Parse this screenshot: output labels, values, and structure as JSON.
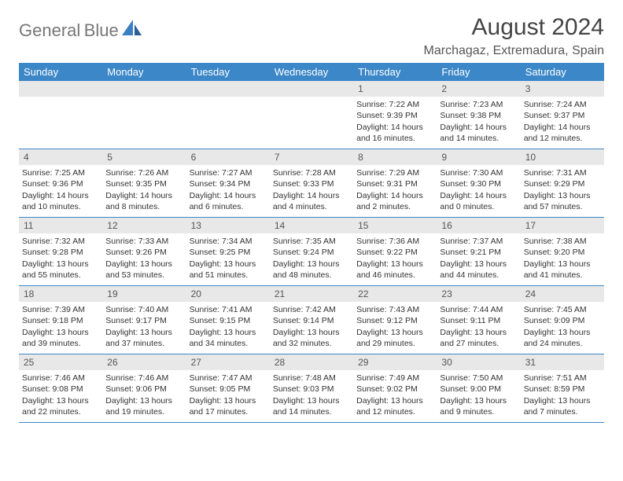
{
  "brand": {
    "word1": "General",
    "word2": "Blue"
  },
  "title": "August 2024",
  "location": "Marchagaz, Extremadura, Spain",
  "colors": {
    "header_bg": "#3c87c7",
    "header_text": "#ffffff",
    "strip_bg": "#e8e8e8",
    "rule": "#3c87c7",
    "body_text": "#333333",
    "logo_gray": "#777777",
    "logo_blue": "#3a7fc2"
  },
  "day_names": [
    "Sunday",
    "Monday",
    "Tuesday",
    "Wednesday",
    "Thursday",
    "Friday",
    "Saturday"
  ],
  "weeks": [
    [
      {
        "n": "",
        "empty": true
      },
      {
        "n": "",
        "empty": true
      },
      {
        "n": "",
        "empty": true
      },
      {
        "n": "",
        "empty": true
      },
      {
        "n": "1",
        "sunrise": "Sunrise: 7:22 AM",
        "sunset": "Sunset: 9:39 PM",
        "daylight": "Daylight: 14 hours and 16 minutes."
      },
      {
        "n": "2",
        "sunrise": "Sunrise: 7:23 AM",
        "sunset": "Sunset: 9:38 PM",
        "daylight": "Daylight: 14 hours and 14 minutes."
      },
      {
        "n": "3",
        "sunrise": "Sunrise: 7:24 AM",
        "sunset": "Sunset: 9:37 PM",
        "daylight": "Daylight: 14 hours and 12 minutes."
      }
    ],
    [
      {
        "n": "4",
        "sunrise": "Sunrise: 7:25 AM",
        "sunset": "Sunset: 9:36 PM",
        "daylight": "Daylight: 14 hours and 10 minutes."
      },
      {
        "n": "5",
        "sunrise": "Sunrise: 7:26 AM",
        "sunset": "Sunset: 9:35 PM",
        "daylight": "Daylight: 14 hours and 8 minutes."
      },
      {
        "n": "6",
        "sunrise": "Sunrise: 7:27 AM",
        "sunset": "Sunset: 9:34 PM",
        "daylight": "Daylight: 14 hours and 6 minutes."
      },
      {
        "n": "7",
        "sunrise": "Sunrise: 7:28 AM",
        "sunset": "Sunset: 9:33 PM",
        "daylight": "Daylight: 14 hours and 4 minutes."
      },
      {
        "n": "8",
        "sunrise": "Sunrise: 7:29 AM",
        "sunset": "Sunset: 9:31 PM",
        "daylight": "Daylight: 14 hours and 2 minutes."
      },
      {
        "n": "9",
        "sunrise": "Sunrise: 7:30 AM",
        "sunset": "Sunset: 9:30 PM",
        "daylight": "Daylight: 14 hours and 0 minutes."
      },
      {
        "n": "10",
        "sunrise": "Sunrise: 7:31 AM",
        "sunset": "Sunset: 9:29 PM",
        "daylight": "Daylight: 13 hours and 57 minutes."
      }
    ],
    [
      {
        "n": "11",
        "sunrise": "Sunrise: 7:32 AM",
        "sunset": "Sunset: 9:28 PM",
        "daylight": "Daylight: 13 hours and 55 minutes."
      },
      {
        "n": "12",
        "sunrise": "Sunrise: 7:33 AM",
        "sunset": "Sunset: 9:26 PM",
        "daylight": "Daylight: 13 hours and 53 minutes."
      },
      {
        "n": "13",
        "sunrise": "Sunrise: 7:34 AM",
        "sunset": "Sunset: 9:25 PM",
        "daylight": "Daylight: 13 hours and 51 minutes."
      },
      {
        "n": "14",
        "sunrise": "Sunrise: 7:35 AM",
        "sunset": "Sunset: 9:24 PM",
        "daylight": "Daylight: 13 hours and 48 minutes."
      },
      {
        "n": "15",
        "sunrise": "Sunrise: 7:36 AM",
        "sunset": "Sunset: 9:22 PM",
        "daylight": "Daylight: 13 hours and 46 minutes."
      },
      {
        "n": "16",
        "sunrise": "Sunrise: 7:37 AM",
        "sunset": "Sunset: 9:21 PM",
        "daylight": "Daylight: 13 hours and 44 minutes."
      },
      {
        "n": "17",
        "sunrise": "Sunrise: 7:38 AM",
        "sunset": "Sunset: 9:20 PM",
        "daylight": "Daylight: 13 hours and 41 minutes."
      }
    ],
    [
      {
        "n": "18",
        "sunrise": "Sunrise: 7:39 AM",
        "sunset": "Sunset: 9:18 PM",
        "daylight": "Daylight: 13 hours and 39 minutes."
      },
      {
        "n": "19",
        "sunrise": "Sunrise: 7:40 AM",
        "sunset": "Sunset: 9:17 PM",
        "daylight": "Daylight: 13 hours and 37 minutes."
      },
      {
        "n": "20",
        "sunrise": "Sunrise: 7:41 AM",
        "sunset": "Sunset: 9:15 PM",
        "daylight": "Daylight: 13 hours and 34 minutes."
      },
      {
        "n": "21",
        "sunrise": "Sunrise: 7:42 AM",
        "sunset": "Sunset: 9:14 PM",
        "daylight": "Daylight: 13 hours and 32 minutes."
      },
      {
        "n": "22",
        "sunrise": "Sunrise: 7:43 AM",
        "sunset": "Sunset: 9:12 PM",
        "daylight": "Daylight: 13 hours and 29 minutes."
      },
      {
        "n": "23",
        "sunrise": "Sunrise: 7:44 AM",
        "sunset": "Sunset: 9:11 PM",
        "daylight": "Daylight: 13 hours and 27 minutes."
      },
      {
        "n": "24",
        "sunrise": "Sunrise: 7:45 AM",
        "sunset": "Sunset: 9:09 PM",
        "daylight": "Daylight: 13 hours and 24 minutes."
      }
    ],
    [
      {
        "n": "25",
        "sunrise": "Sunrise: 7:46 AM",
        "sunset": "Sunset: 9:08 PM",
        "daylight": "Daylight: 13 hours and 22 minutes."
      },
      {
        "n": "26",
        "sunrise": "Sunrise: 7:46 AM",
        "sunset": "Sunset: 9:06 PM",
        "daylight": "Daylight: 13 hours and 19 minutes."
      },
      {
        "n": "27",
        "sunrise": "Sunrise: 7:47 AM",
        "sunset": "Sunset: 9:05 PM",
        "daylight": "Daylight: 13 hours and 17 minutes."
      },
      {
        "n": "28",
        "sunrise": "Sunrise: 7:48 AM",
        "sunset": "Sunset: 9:03 PM",
        "daylight": "Daylight: 13 hours and 14 minutes."
      },
      {
        "n": "29",
        "sunrise": "Sunrise: 7:49 AM",
        "sunset": "Sunset: 9:02 PM",
        "daylight": "Daylight: 13 hours and 12 minutes."
      },
      {
        "n": "30",
        "sunrise": "Sunrise: 7:50 AM",
        "sunset": "Sunset: 9:00 PM",
        "daylight": "Daylight: 13 hours and 9 minutes."
      },
      {
        "n": "31",
        "sunrise": "Sunrise: 7:51 AM",
        "sunset": "Sunset: 8:59 PM",
        "daylight": "Daylight: 13 hours and 7 minutes."
      }
    ]
  ]
}
